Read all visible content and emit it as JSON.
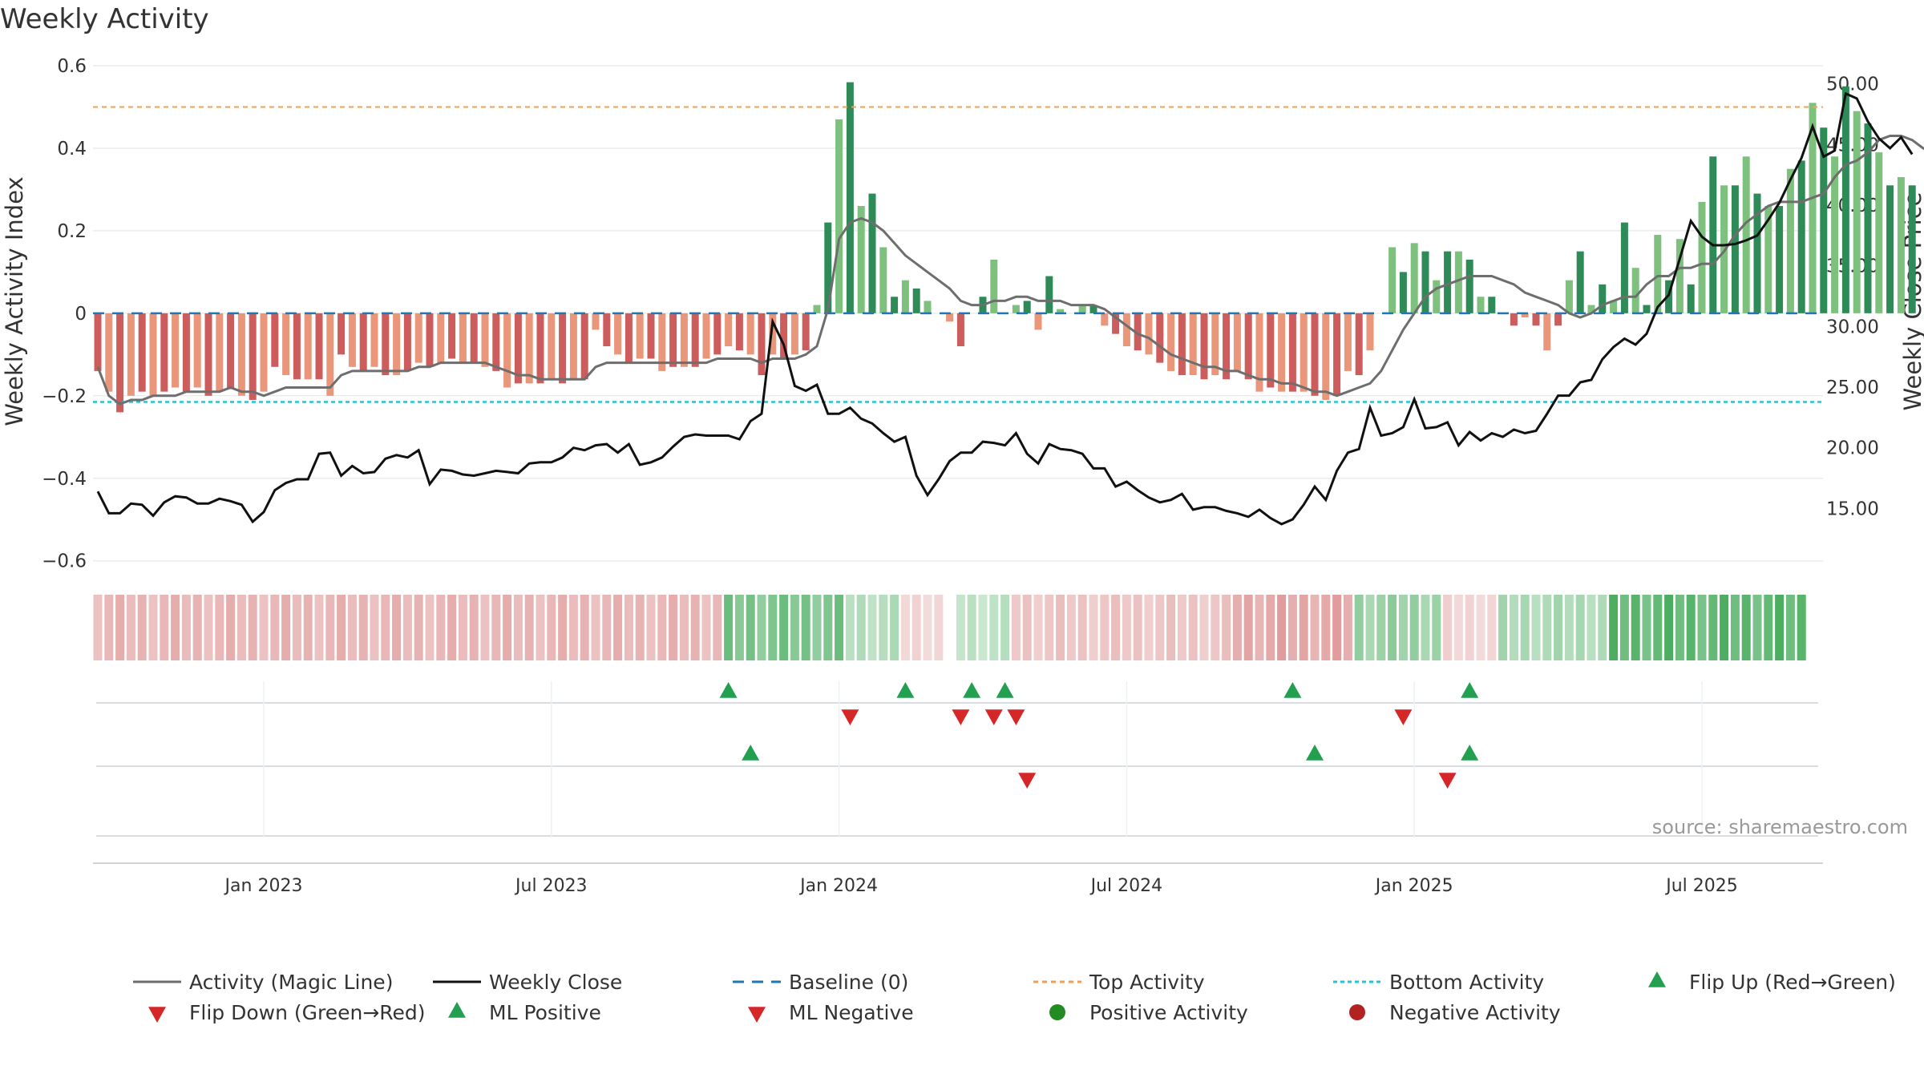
{
  "title": "Weekly Activity",
  "source": "source: sharemaestro.com",
  "colors": {
    "pos_strong": "#2e8b57",
    "pos_light": "#7ec07e",
    "neg_strong": "#cd5c5c",
    "neg_light": "#e9967a",
    "magic_line": "#6e6e6e",
    "close_line": "#111111",
    "baseline": "#1f77b4",
    "top": "#f0a050",
    "bottom": "#22c5d5",
    "flip_up": "#22a050",
    "flip_down": "#d62728"
  },
  "chart_data": {
    "type": "bar+line",
    "title": "Weekly Activity",
    "ylabel_left": "Weekly Activity Index",
    "ylabel_right": "Weekly Close Price",
    "ylim_left": [
      -0.62,
      0.6
    ],
    "ylim_right": [
      10.0,
      51.5
    ],
    "yticks_left": [
      {
        "v": 0.6,
        "label": "0.6"
      },
      {
        "v": 0.4,
        "label": "0.4"
      },
      {
        "v": 0.2,
        "label": "0.2"
      },
      {
        "v": 0,
        "label": "0"
      },
      {
        "v": -0.2,
        "label": "−0.2"
      },
      {
        "v": -0.4,
        "label": "−0.4"
      },
      {
        "v": -0.6,
        "label": "−0.6"
      }
    ],
    "yticks_right": [
      {
        "v": 50,
        "label": "50.00"
      },
      {
        "v": 45,
        "label": "45.00"
      },
      {
        "v": 40,
        "label": "40.00"
      },
      {
        "v": 35,
        "label": "35.00"
      },
      {
        "v": 30,
        "label": "30.00"
      },
      {
        "v": 25,
        "label": "25.00"
      },
      {
        "v": 20,
        "label": "20.00"
      },
      {
        "v": 15,
        "label": "15.00"
      }
    ],
    "xtick_labels": [
      {
        "week": 15,
        "label": "Jan 2023"
      },
      {
        "week": 41,
        "label": "Jul 2023"
      },
      {
        "week": 67,
        "label": "Jan 2024"
      },
      {
        "week": 93,
        "label": "Jul 2024"
      },
      {
        "week": 119,
        "label": "Jan 2025"
      },
      {
        "week": 145,
        "label": "Jul 2025"
      }
    ],
    "top_activity": 0.5,
    "bottom_activity": -0.215,
    "baseline": 0,
    "activity": [
      -0.14,
      -0.19,
      -0.24,
      -0.2,
      -0.19,
      -0.2,
      -0.19,
      -0.18,
      -0.19,
      -0.18,
      -0.2,
      -0.19,
      -0.18,
      -0.2,
      -0.21,
      -0.19,
      -0.13,
      -0.15,
      -0.16,
      -0.16,
      -0.16,
      -0.2,
      -0.1,
      -0.13,
      -0.14,
      -0.13,
      -0.15,
      -0.15,
      -0.14,
      -0.12,
      -0.13,
      -0.12,
      -0.11,
      -0.12,
      -0.12,
      -0.13,
      -0.14,
      -0.18,
      -0.17,
      -0.17,
      -0.17,
      -0.16,
      -0.17,
      -0.16,
      -0.16,
      -0.04,
      -0.08,
      -0.1,
      -0.12,
      -0.11,
      -0.11,
      -0.14,
      -0.13,
      -0.13,
      -0.13,
      -0.11,
      -0.1,
      -0.08,
      -0.09,
      -0.1,
      -0.15,
      -0.1,
      -0.11,
      -0.1,
      -0.09,
      0.02,
      0.22,
      0.47,
      0.56,
      0.26,
      0.29,
      0.16,
      0.04,
      0.08,
      0.06,
      0.03,
      0.0,
      -0.02,
      -0.08,
      0.0,
      0.04,
      0.13,
      0.0,
      0.02,
      0.03,
      -0.04,
      0.09,
      0.01,
      0.0,
      0.02,
      0.02,
      -0.03,
      -0.05,
      -0.08,
      -0.09,
      -0.1,
      -0.12,
      -0.14,
      -0.15,
      -0.15,
      -0.16,
      -0.15,
      -0.16,
      -0.14,
      -0.16,
      -0.19,
      -0.18,
      -0.19,
      -0.19,
      -0.19,
      -0.2,
      -0.21,
      -0.2,
      -0.14,
      -0.15,
      -0.09,
      0.0,
      0.16,
      0.1,
      0.17,
      0.15,
      0.08,
      0.15,
      0.15,
      0.13,
      0.04,
      0.04,
      0.0,
      -0.03,
      -0.01,
      -0.03,
      -0.09,
      -0.03,
      0.08,
      0.15,
      0.02,
      0.07,
      0.03,
      0.22,
      0.11,
      0.02,
      0.19,
      0.08,
      0.18,
      0.07,
      0.27,
      0.38,
      0.31,
      0.31,
      0.38,
      0.29,
      0.26,
      0.26,
      0.35,
      0.37,
      0.51,
      0.45,
      0.38,
      0.55,
      0.49,
      0.46,
      0.39,
      0.31,
      0.33,
      0.31
    ],
    "magic_line": [
      -0.13,
      -0.2,
      -0.22,
      -0.21,
      -0.21,
      -0.2,
      -0.2,
      -0.2,
      -0.19,
      -0.19,
      -0.19,
      -0.19,
      -0.18,
      -0.19,
      -0.19,
      -0.2,
      -0.19,
      -0.18,
      -0.18,
      -0.18,
      -0.18,
      -0.18,
      -0.15,
      -0.14,
      -0.14,
      -0.14,
      -0.14,
      -0.14,
      -0.14,
      -0.13,
      -0.13,
      -0.12,
      -0.12,
      -0.12,
      -0.12,
      -0.12,
      -0.13,
      -0.14,
      -0.15,
      -0.15,
      -0.16,
      -0.16,
      -0.16,
      -0.16,
      -0.16,
      -0.13,
      -0.12,
      -0.12,
      -0.12,
      -0.12,
      -0.12,
      -0.12,
      -0.12,
      -0.12,
      -0.12,
      -0.12,
      -0.11,
      -0.11,
      -0.11,
      -0.11,
      -0.12,
      -0.11,
      -0.11,
      -0.11,
      -0.1,
      -0.08,
      0.01,
      0.18,
      0.22,
      0.23,
      0.22,
      0.2,
      0.17,
      0.14,
      0.12,
      0.1,
      0.08,
      0.06,
      0.03,
      0.02,
      0.02,
      0.03,
      0.03,
      0.04,
      0.04,
      0.03,
      0.03,
      0.03,
      0.02,
      0.02,
      0.02,
      0.01,
      -0.01,
      -0.03,
      -0.05,
      -0.06,
      -0.08,
      -0.1,
      -0.11,
      -0.12,
      -0.13,
      -0.13,
      -0.14,
      -0.14,
      -0.15,
      -0.16,
      -0.16,
      -0.17,
      -0.17,
      -0.18,
      -0.19,
      -0.19,
      -0.2,
      -0.19,
      -0.18,
      -0.17,
      -0.14,
      -0.09,
      -0.04,
      0.0,
      0.04,
      0.06,
      0.07,
      0.08,
      0.09,
      0.09,
      0.09,
      0.08,
      0.07,
      0.05,
      0.04,
      0.03,
      0.02,
      0.0,
      -0.01,
      0.0,
      0.02,
      0.03,
      0.04,
      0.04,
      0.07,
      0.09,
      0.09,
      0.11,
      0.11,
      0.12,
      0.12,
      0.15,
      0.19,
      0.22,
      0.24,
      0.26,
      0.27,
      0.27,
      0.27,
      0.28,
      0.29,
      0.33,
      0.36,
      0.37,
      0.39,
      0.42,
      0.43,
      0.43,
      0.42,
      0.4,
      0.39
    ],
    "weekly_close": [
      16.4,
      14.6,
      14.6,
      15.4,
      15.3,
      14.4,
      15.5,
      16.0,
      15.9,
      15.4,
      15.4,
      15.8,
      15.6,
      15.3,
      13.9,
      14.7,
      16.5,
      17.1,
      17.4,
      17.4,
      19.5,
      19.6,
      17.7,
      18.5,
      17.9,
      18.0,
      19.1,
      19.4,
      19.2,
      19.8,
      17.0,
      18.2,
      18.1,
      17.8,
      17.7,
      17.9,
      18.1,
      18.0,
      17.9,
      18.7,
      18.8,
      18.8,
      19.2,
      20.0,
      19.8,
      20.2,
      20.3,
      19.6,
      20.3,
      18.6,
      18.8,
      19.2,
      20.1,
      20.9,
      21.1,
      21.0,
      21.0,
      21.0,
      20.7,
      22.2,
      22.8,
      30.4,
      28.5,
      25.1,
      24.7,
      25.2,
      22.8,
      22.8,
      23.3,
      22.4,
      22.0,
      21.2,
      20.5,
      20.9,
      17.7,
      16.1,
      17.4,
      18.9,
      19.6,
      19.6,
      20.5,
      20.4,
      20.2,
      21.2,
      19.5,
      18.7,
      20.3,
      19.9,
      19.8,
      19.5,
      18.3,
      18.3,
      16.8,
      17.2,
      16.5,
      15.9,
      15.5,
      15.7,
      16.2,
      14.9,
      15.1,
      15.1,
      14.8,
      14.6,
      14.3,
      14.9,
      14.2,
      13.7,
      14.1,
      15.3,
      16.8,
      15.7,
      18.1,
      19.6,
      19.9,
      23.3,
      21.0,
      21.2,
      21.7,
      24.0,
      21.6,
      21.7,
      22.1,
      20.2,
      21.3,
      20.6,
      21.2,
      20.9,
      21.5,
      21.2,
      21.4,
      22.8,
      24.3,
      24.3,
      25.4,
      25.6,
      27.3,
      28.3,
      29.0,
      28.5,
      29.4,
      31.6,
      32.6,
      35.6,
      38.7,
      37.4,
      36.7,
      36.7,
      36.8,
      37.1,
      37.5,
      38.8,
      40.2,
      42.1,
      43.9,
      46.5,
      44.0,
      44.5,
      49.2,
      48.8,
      46.9,
      45.5,
      44.7,
      45.6,
      44.2
    ],
    "color_strip": [
      {
        "from": 0,
        "to": 57,
        "sign": "neg",
        "intensity": 0.5
      },
      {
        "from": 57,
        "to": 68,
        "sign": "pos",
        "intensity": 0.7
      },
      {
        "from": 68,
        "to": 73,
        "sign": "pos",
        "intensity": 0.4
      },
      {
        "from": 73,
        "to": 77,
        "sign": "neg",
        "intensity": 0.3
      },
      {
        "from": 78,
        "to": 103,
        "sign": "pos",
        "intensity": 0.35
      },
      {
        "from": 83,
        "to": 103,
        "sign": "neg",
        "intensity": 0.4
      },
      {
        "from": 103,
        "to": 114,
        "sign": "neg",
        "intensity": 0.6
      },
      {
        "from": 114,
        "to": 122,
        "sign": "pos",
        "intensity": 0.55
      },
      {
        "from": 122,
        "to": 127,
        "sign": "neg",
        "intensity": 0.3
      },
      {
        "from": 127,
        "to": 137,
        "sign": "pos",
        "intensity": 0.45
      },
      {
        "from": 137,
        "to": 155,
        "sign": "pos",
        "intensity": 0.85
      }
    ],
    "flip_up_weeks": [
      57,
      73,
      79,
      82,
      108,
      124
    ],
    "flip_down_weeks": [
      68,
      78,
      81,
      83,
      118
    ],
    "ml_positive_weeks": [
      59,
      110,
      124
    ],
    "ml_negative_weeks": [
      84,
      122
    ],
    "legend": [
      "Activity (Magic Line)",
      "Weekly Close",
      "Baseline (0)",
      "Top Activity",
      "Bottom Activity",
      "Flip Up (Red→Green)",
      "Flip Down (Green→Red)",
      "ML Positive",
      "ML Negative",
      "Positive Activity",
      "Negative Activity"
    ]
  }
}
